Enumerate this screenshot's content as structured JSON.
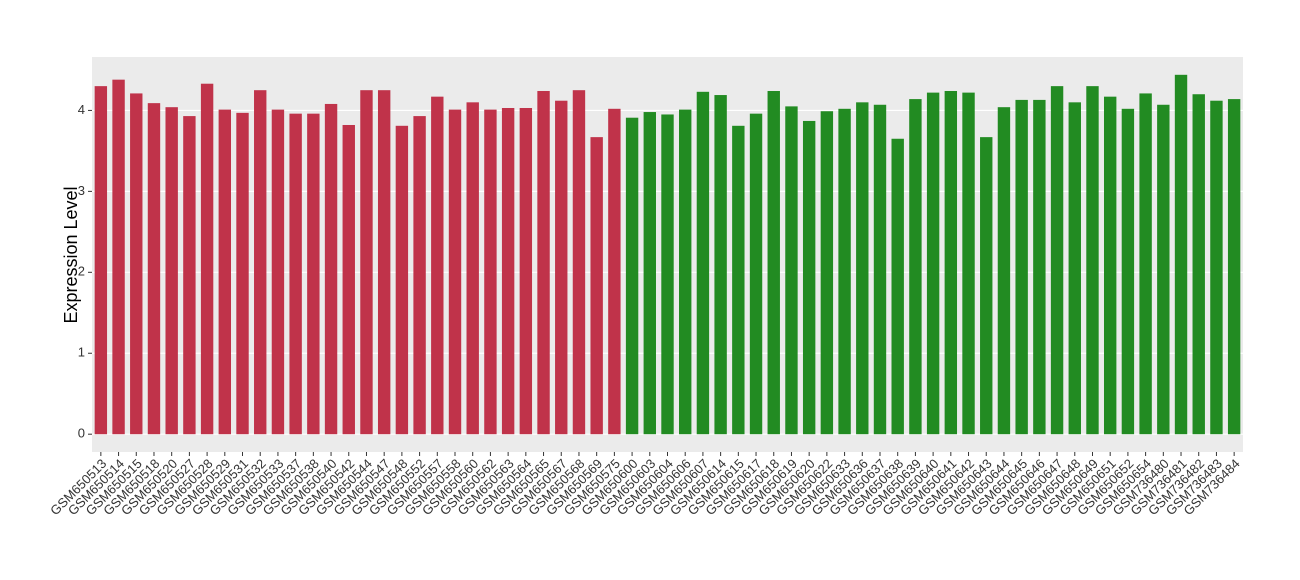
{
  "chart_data": {
    "type": "bar",
    "y_label": "Expression Level",
    "categories": [
      "GSM650513",
      "GSM650514",
      "GSM650515",
      "GSM650518",
      "GSM650520",
      "GSM650527",
      "GSM650528",
      "GSM650529",
      "GSM650531",
      "GSM650532",
      "GSM650533",
      "GSM650537",
      "GSM650538",
      "GSM650540",
      "GSM650542",
      "GSM650544",
      "GSM650547",
      "GSM650548",
      "GSM650552",
      "GSM650557",
      "GSM650558",
      "GSM650560",
      "GSM650562",
      "GSM650563",
      "GSM650564",
      "GSM650565",
      "GSM650567",
      "GSM650568",
      "GSM650569",
      "GSM650575",
      "GSM650600",
      "GSM650603",
      "GSM650604",
      "GSM650606",
      "GSM650607",
      "GSM650614",
      "GSM650615",
      "GSM650617",
      "GSM650618",
      "GSM650619",
      "GSM650620",
      "GSM650622",
      "GSM650633",
      "GSM650636",
      "GSM650637",
      "GSM650638",
      "GSM650639",
      "GSM650640",
      "GSM650641",
      "GSM650642",
      "GSM650643",
      "GSM650644",
      "GSM650645",
      "GSM650646",
      "GSM650647",
      "GSM650648",
      "GSM650649",
      "GSM650651",
      "GSM650652",
      "GSM650654",
      "GSM736480",
      "GSM736481",
      "GSM736482",
      "GSM736483",
      "GSM736484"
    ],
    "values": [
      4.3,
      4.38,
      4.21,
      4.09,
      4.04,
      3.93,
      4.33,
      4.01,
      3.97,
      4.25,
      4.01,
      3.96,
      3.96,
      4.08,
      3.82,
      4.25,
      4.25,
      3.81,
      3.93,
      4.17,
      4.01,
      4.1,
      4.01,
      4.03,
      4.03,
      4.24,
      4.12,
      4.25,
      3.67,
      4.02,
      3.91,
      3.98,
      3.95,
      4.01,
      4.23,
      4.19,
      3.81,
      3.96,
      4.24,
      4.05,
      3.87,
      3.99,
      4.02,
      4.1,
      4.07,
      3.65,
      4.14,
      4.22,
      4.24,
      4.22,
      3.67,
      4.04,
      4.13,
      4.13,
      4.3,
      4.1,
      4.3,
      4.17,
      4.02,
      4.21,
      4.07,
      4.44,
      4.2,
      4.12,
      4.14
    ],
    "colors": [
      "#c0334a",
      "#c0334a",
      "#c0334a",
      "#c0334a",
      "#c0334a",
      "#c0334a",
      "#c0334a",
      "#c0334a",
      "#c0334a",
      "#c0334a",
      "#c0334a",
      "#c0334a",
      "#c0334a",
      "#c0334a",
      "#c0334a",
      "#c0334a",
      "#c0334a",
      "#c0334a",
      "#c0334a",
      "#c0334a",
      "#c0334a",
      "#c0334a",
      "#c0334a",
      "#c0334a",
      "#c0334a",
      "#c0334a",
      "#c0334a",
      "#c0334a",
      "#c0334a",
      "#c0334a",
      "#228b22",
      "#228b22",
      "#228b22",
      "#228b22",
      "#228b22",
      "#228b22",
      "#228b22",
      "#228b22",
      "#228b22",
      "#228b22",
      "#228b22",
      "#228b22",
      "#228b22",
      "#228b22",
      "#228b22",
      "#228b22",
      "#228b22",
      "#228b22",
      "#228b22",
      "#228b22",
      "#228b22",
      "#228b22",
      "#228b22",
      "#228b22",
      "#228b22",
      "#228b22",
      "#228b22",
      "#228b22",
      "#228b22",
      "#228b22",
      "#228b22",
      "#228b22",
      "#228b22",
      "#228b22",
      "#228b22"
    ],
    "ylim": [
      -0.22,
      4.66
    ],
    "yticks": [
      0,
      1,
      2,
      3,
      4
    ],
    "grid": true
  }
}
